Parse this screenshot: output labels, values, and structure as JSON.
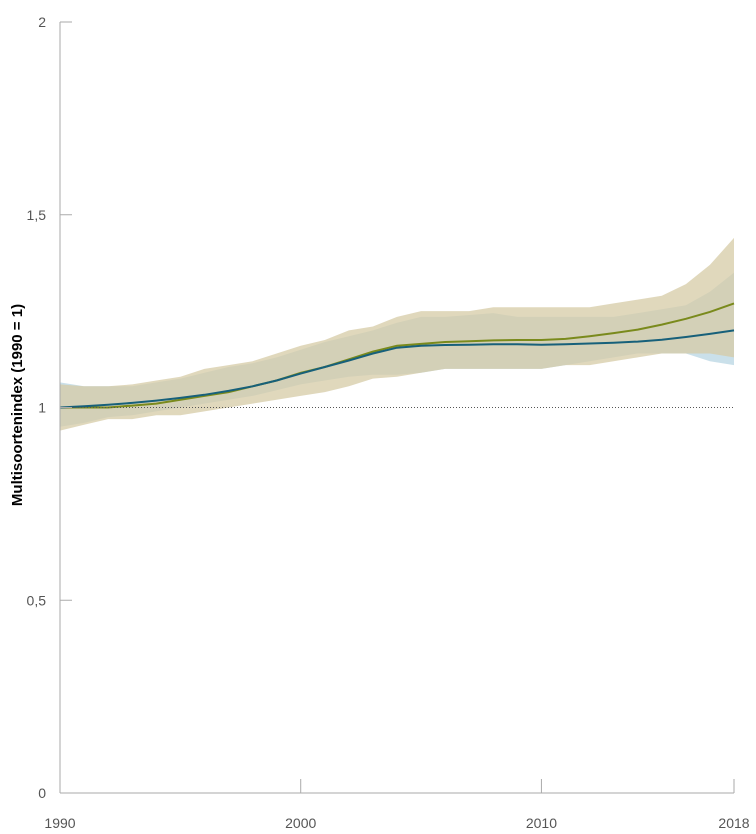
{
  "chart_data": {
    "type": "line",
    "title": "",
    "xlabel": "",
    "ylabel": "Multisoortenindex (1990 = 1)",
    "xlim": [
      1990,
      2018
    ],
    "ylim": [
      0,
      2
    ],
    "x_ticks": [
      1990,
      2000,
      2010,
      2018
    ],
    "y_ticks": [
      {
        "value": 0,
        "label": "0"
      },
      {
        "value": 0.5,
        "label": "0,5"
      },
      {
        "value": 1,
        "label": "1"
      },
      {
        "value": 1.5,
        "label": "1,5"
      },
      {
        "value": 2,
        "label": "2"
      }
    ],
    "reference_line": 1,
    "grid": false,
    "x": [
      1990,
      1991,
      1992,
      1993,
      1994,
      1995,
      1996,
      1997,
      1998,
      1999,
      2000,
      2001,
      2002,
      2003,
      2004,
      2005,
      2006,
      2007,
      2008,
      2009,
      2010,
      2011,
      2012,
      2013,
      2014,
      2015,
      2016,
      2017,
      2018
    ],
    "series": [
      {
        "color": "#7a8a1c",
        "band_color": "#d5cba6",
        "values": [
          1.0,
          1.0,
          1.0,
          1.005,
          1.01,
          1.02,
          1.03,
          1.04,
          1.055,
          1.07,
          1.09,
          1.105,
          1.125,
          1.145,
          1.16,
          1.165,
          1.17,
          1.172,
          1.174,
          1.175,
          1.175,
          1.178,
          1.185,
          1.193,
          1.202,
          1.215,
          1.23,
          1.248,
          1.27
        ],
        "lower": [
          0.94,
          0.955,
          0.97,
          0.97,
          0.98,
          0.98,
          0.99,
          1.0,
          1.01,
          1.02,
          1.03,
          1.04,
          1.055,
          1.075,
          1.08,
          1.09,
          1.1,
          1.1,
          1.1,
          1.1,
          1.1,
          1.11,
          1.11,
          1.12,
          1.13,
          1.14,
          1.14,
          1.14,
          1.13
        ],
        "upper": [
          1.06,
          1.055,
          1.055,
          1.06,
          1.07,
          1.08,
          1.1,
          1.11,
          1.12,
          1.14,
          1.16,
          1.175,
          1.2,
          1.21,
          1.235,
          1.25,
          1.25,
          1.25,
          1.26,
          1.26,
          1.26,
          1.26,
          1.26,
          1.27,
          1.28,
          1.29,
          1.32,
          1.37,
          1.44
        ]
      },
      {
        "color": "#17607a",
        "band_color": "#b8d6e3",
        "values": [
          1.0,
          1.003,
          1.007,
          1.012,
          1.018,
          1.025,
          1.033,
          1.043,
          1.055,
          1.07,
          1.088,
          1.105,
          1.122,
          1.14,
          1.155,
          1.16,
          1.162,
          1.163,
          1.164,
          1.164,
          1.163,
          1.164,
          1.166,
          1.168,
          1.171,
          1.176,
          1.183,
          1.191,
          1.2
        ],
        "lower": [
          0.95,
          0.96,
          0.975,
          0.98,
          0.99,
          1.0,
          1.01,
          1.02,
          1.03,
          1.045,
          1.06,
          1.07,
          1.08,
          1.085,
          1.085,
          1.09,
          1.1,
          1.1,
          1.1,
          1.1,
          1.1,
          1.11,
          1.12,
          1.13,
          1.14,
          1.14,
          1.14,
          1.12,
          1.11
        ],
        "upper": [
          1.065,
          1.055,
          1.055,
          1.055,
          1.065,
          1.075,
          1.09,
          1.105,
          1.115,
          1.13,
          1.15,
          1.17,
          1.185,
          1.2,
          1.22,
          1.235,
          1.235,
          1.24,
          1.245,
          1.235,
          1.235,
          1.235,
          1.235,
          1.235,
          1.245,
          1.255,
          1.265,
          1.3,
          1.35
        ]
      }
    ]
  }
}
